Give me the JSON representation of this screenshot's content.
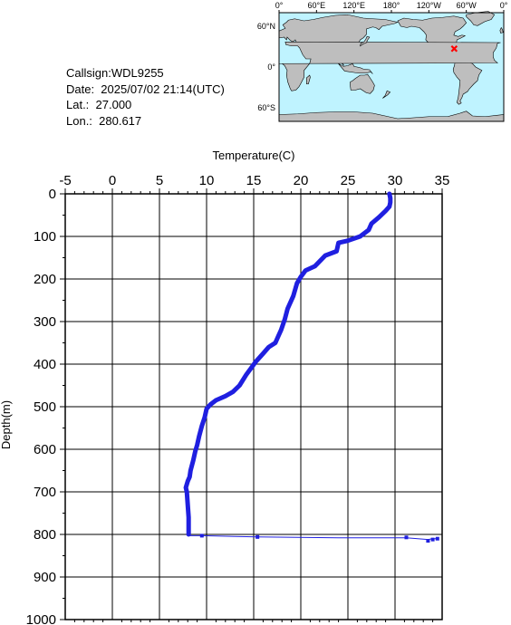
{
  "info": {
    "callsign": "Callsign:WDL9255",
    "date": "Date:  2025/07/02 21:14(UTC)",
    "lat": "Lat.:  27.000",
    "lon": "Lon.:  280.617"
  },
  "map": {
    "lon_labels": [
      "0°",
      "60°E",
      "120°E",
      "180°",
      "120°W",
      "60°W",
      "0°"
    ],
    "lat_labels": [
      "60°N",
      "0°",
      "60°S"
    ],
    "ocean_color": "#bff3ff",
    "land_color": "#bebebe",
    "marker_color": "#ff0000",
    "marker_lat": 27.0,
    "marker_lon": 280.617
  },
  "chart_data": {
    "type": "line",
    "xlabel": "Temperature(C)",
    "ylabel": "Depth(m)",
    "xlim": [
      -5,
      35
    ],
    "ylim": [
      0,
      1000
    ],
    "x_ticks": [
      -5,
      0,
      5,
      10,
      15,
      20,
      25,
      30,
      35
    ],
    "y_ticks": [
      0,
      100,
      200,
      300,
      400,
      500,
      600,
      700,
      800,
      900,
      1000
    ],
    "y_inverted": true,
    "grid": true,
    "line_color": "#1f1fe0",
    "profile": [
      [
        29.4,
        0
      ],
      [
        29.5,
        10
      ],
      [
        29.5,
        20
      ],
      [
        29.4,
        30
      ],
      [
        29.0,
        40
      ],
      [
        28.3,
        55
      ],
      [
        27.5,
        70
      ],
      [
        27.2,
        85
      ],
      [
        26.3,
        100
      ],
      [
        25.0,
        110
      ],
      [
        24.0,
        115
      ],
      [
        23.8,
        135
      ],
      [
        22.6,
        145
      ],
      [
        21.5,
        170
      ],
      [
        20.5,
        180
      ],
      [
        20.0,
        195
      ],
      [
        19.6,
        210
      ],
      [
        19.2,
        240
      ],
      [
        18.6,
        270
      ],
      [
        18.3,
        295
      ],
      [
        17.9,
        320
      ],
      [
        17.6,
        335
      ],
      [
        17.3,
        350
      ],
      [
        16.6,
        360
      ],
      [
        16.0,
        375
      ],
      [
        15.2,
        395
      ],
      [
        14.2,
        425
      ],
      [
        13.5,
        450
      ],
      [
        12.8,
        465
      ],
      [
        12.0,
        475
      ],
      [
        11.0,
        485
      ],
      [
        10.4,
        495
      ],
      [
        10.0,
        505
      ],
      [
        9.8,
        525
      ],
      [
        9.5,
        545
      ],
      [
        9.2,
        570
      ],
      [
        9.0,
        590
      ],
      [
        8.8,
        605
      ],
      [
        8.6,
        625
      ],
      [
        8.3,
        650
      ],
      [
        8.2,
        665
      ],
      [
        8.0,
        675
      ],
      [
        7.8,
        690
      ],
      [
        7.9,
        700
      ],
      [
        8.0,
        730
      ],
      [
        8.1,
        760
      ],
      [
        8.1,
        800
      ]
    ],
    "spike": [
      [
        8.1,
        803
      ],
      [
        9.5,
        803
      ],
      [
        15.4,
        806
      ],
      [
        24.0,
        808
      ],
      [
        31.2,
        808
      ],
      [
        33.5,
        812
      ],
      [
        34.0,
        810
      ],
      [
        34.5,
        810
      ]
    ],
    "spike_points": [
      [
        9.5,
        803
      ],
      [
        15.4,
        806
      ],
      [
        31.2,
        807
      ],
      [
        33.5,
        815
      ],
      [
        34.0,
        812
      ],
      [
        34.5,
        810
      ]
    ]
  }
}
